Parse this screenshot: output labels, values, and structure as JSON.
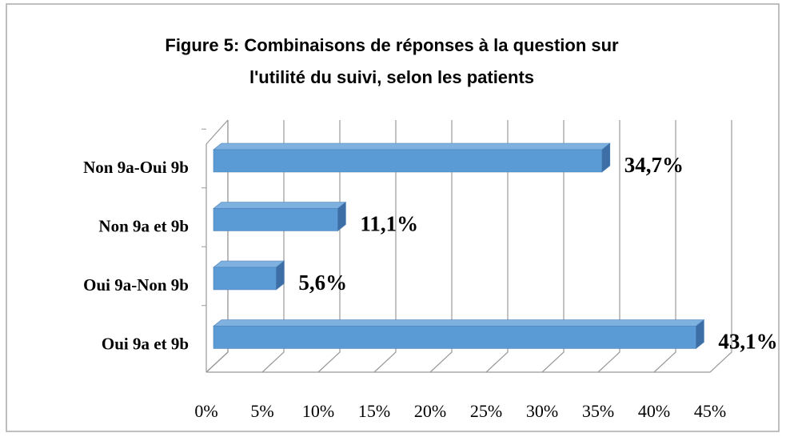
{
  "chart_data": {
    "type": "bar3d",
    "title": "Figure 5: Combinaisons de réponses à la question sur",
    "subtitle": "l'utilité du suivi, selon les patients",
    "categories": [
      "Non 9a-Oui 9b",
      "Non 9a et 9b",
      "Oui 9a-Non 9b",
      "Oui 9a et 9b"
    ],
    "values": [
      34.7,
      11.1,
      5.6,
      43.1
    ],
    "value_labels": [
      "34,7%",
      "11,1%",
      "5,6%",
      "43,1%"
    ],
    "color": "#5b9bd5",
    "xlim": [
      0,
      45
    ],
    "xticks": [
      {
        "value": 0,
        "label": "0%"
      },
      {
        "value": 5,
        "label": "5%"
      },
      {
        "value": 10,
        "label": "10%"
      },
      {
        "value": 15,
        "label": "15%"
      },
      {
        "value": 20,
        "label": "20%"
      },
      {
        "value": 25,
        "label": "25%"
      },
      {
        "value": 30,
        "label": "30%"
      },
      {
        "value": 35,
        "label": "35%"
      },
      {
        "value": 40,
        "label": "40%"
      },
      {
        "value": 45,
        "label": "45%"
      }
    ],
    "grid": true
  }
}
